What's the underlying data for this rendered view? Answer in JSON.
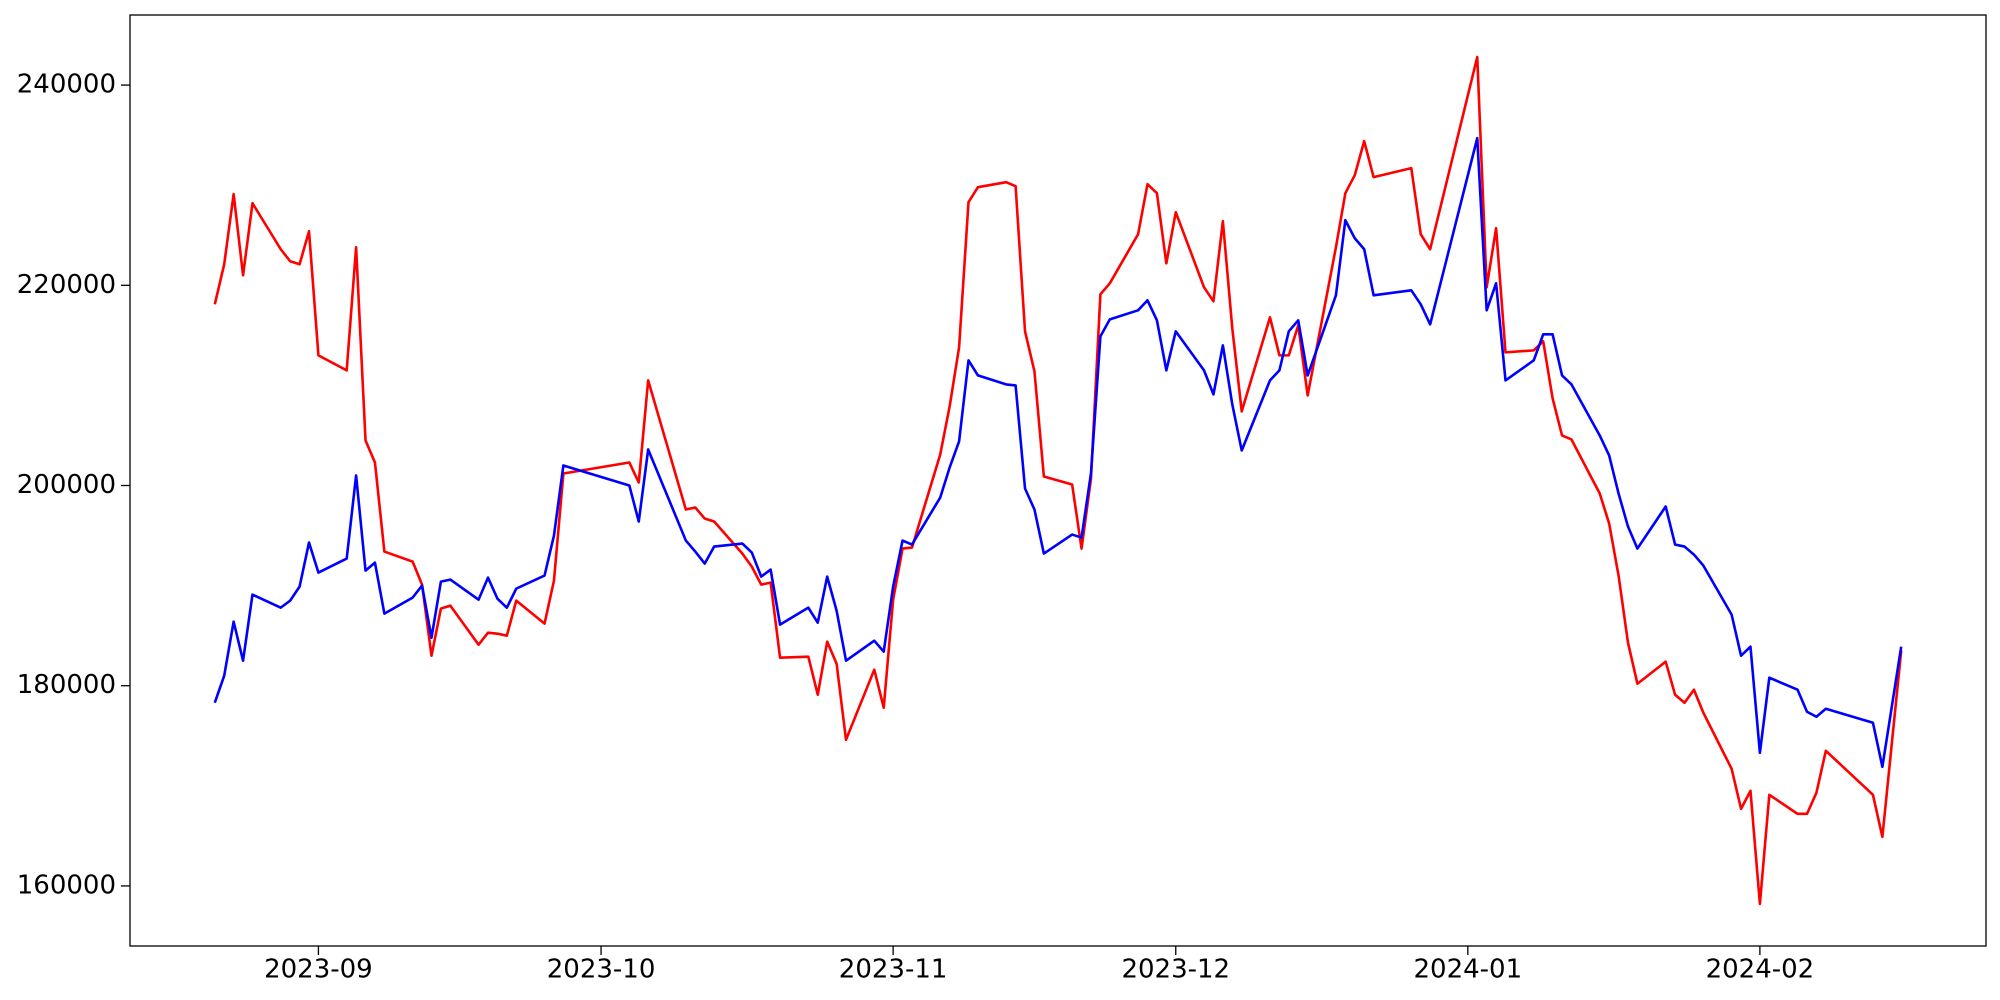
{
  "chart_data": {
    "type": "line",
    "x": [
      "2023-08-21",
      "2023-08-22",
      "2023-08-23",
      "2023-08-24",
      "2023-08-25",
      "2023-08-28",
      "2023-08-29",
      "2023-08-30",
      "2023-08-31",
      "2023-09-01",
      "2023-09-04",
      "2023-09-05",
      "2023-09-06",
      "2023-09-07",
      "2023-09-08",
      "2023-09-11",
      "2023-09-12",
      "2023-09-13",
      "2023-09-14",
      "2023-09-15",
      "2023-09-18",
      "2023-09-19",
      "2023-09-20",
      "2023-09-21",
      "2023-09-22",
      "2023-09-25",
      "2023-09-26",
      "2023-09-27",
      "2023-10-04",
      "2023-10-05",
      "2023-10-06",
      "2023-10-10",
      "2023-10-11",
      "2023-10-12",
      "2023-10-13",
      "2023-10-16",
      "2023-10-17",
      "2023-10-18",
      "2023-10-19",
      "2023-10-20",
      "2023-10-23",
      "2023-10-24",
      "2023-10-25",
      "2023-10-26",
      "2023-10-27",
      "2023-10-30",
      "2023-10-31",
      "2023-11-01",
      "2023-11-02",
      "2023-11-03",
      "2023-11-06",
      "2023-11-07",
      "2023-11-08",
      "2023-11-09",
      "2023-11-10",
      "2023-11-13",
      "2023-11-14",
      "2023-11-15",
      "2023-11-16",
      "2023-11-17",
      "2023-11-20",
      "2023-11-21",
      "2023-11-22",
      "2023-11-23",
      "2023-11-24",
      "2023-11-27",
      "2023-11-28",
      "2023-11-29",
      "2023-11-30",
      "2023-12-01",
      "2023-12-04",
      "2023-12-05",
      "2023-12-06",
      "2023-12-07",
      "2023-12-08",
      "2023-12-11",
      "2023-12-12",
      "2023-12-13",
      "2023-12-14",
      "2023-12-15",
      "2023-12-18",
      "2023-12-19",
      "2023-12-20",
      "2023-12-21",
      "2023-12-22",
      "2023-12-26",
      "2023-12-27",
      "2023-12-28",
      "2024-01-02",
      "2024-01-03",
      "2024-01-04",
      "2024-01-05",
      "2024-01-08",
      "2024-01-09",
      "2024-01-10",
      "2024-01-11",
      "2024-01-12",
      "2024-01-15",
      "2024-01-16",
      "2024-01-17",
      "2024-01-18",
      "2024-01-19",
      "2024-01-22",
      "2024-01-23",
      "2024-01-24",
      "2024-01-25",
      "2024-01-26",
      "2024-01-29",
      "2024-01-30",
      "2024-01-31",
      "2024-02-01",
      "2024-02-02",
      "2024-02-05",
      "2024-02-06",
      "2024-02-07",
      "2024-02-08",
      "2024-02-13",
      "2024-02-14",
      "2024-02-16"
    ],
    "series": [
      {
        "color": "#ff0000",
        "values": [
          218100,
          222100,
          229100,
          221000,
          228200,
          223600,
          222400,
          222100,
          225400,
          213000,
          211500,
          223800,
          204500,
          202300,
          193400,
          192400,
          190100,
          183000,
          187700,
          188000,
          184100,
          185300,
          185200,
          185000,
          188500,
          186200,
          190500,
          201200,
          202300,
          200300,
          210500,
          197600,
          197800,
          196700,
          196400,
          193200,
          191900,
          190100,
          190300,
          182800,
          182900,
          179100,
          184400,
          182200,
          174600,
          181600,
          177800,
          188600,
          193700,
          193800,
          203100,
          207900,
          213800,
          228300,
          229800,
          230300,
          229900,
          215400,
          211400,
          200900,
          200100,
          193700,
          200700,
          219100,
          220200,
          225100,
          230100,
          229200,
          222200,
          227300,
          219800,
          218400,
          226400,
          215700,
          207400,
          216800,
          213000,
          213000,
          216000,
          209000,
          223800,
          229200,
          231000,
          234400,
          230800,
          231700,
          225100,
          223600,
          242800,
          219800,
          225700,
          213300,
          213500,
          214400,
          208700,
          205000,
          204600,
          199200,
          196200,
          191000,
          184300,
          180200,
          182400,
          179100,
          178300,
          179600,
          177300,
          171700,
          167700,
          169500,
          158200,
          169100,
          167200,
          167200,
          169300,
          173500,
          169100,
          164900,
          183500
        ]
      },
      {
        "color": "#0000ff",
        "values": [
          178300,
          181000,
          186400,
          182500,
          189100,
          187800,
          188500,
          189900,
          194300,
          191300,
          192700,
          201000,
          191500,
          192300,
          187200,
          188800,
          190000,
          184800,
          190400,
          190600,
          188600,
          190800,
          188700,
          187800,
          189700,
          191000,
          195000,
          202000,
          200000,
          196400,
          203600,
          194500,
          193400,
          192200,
          193900,
          194200,
          193300,
          190900,
          191600,
          186100,
          187800,
          186300,
          190900,
          187500,
          182500,
          184500,
          183400,
          189900,
          194500,
          194100,
          198800,
          201800,
          204400,
          212500,
          211000,
          210100,
          210000,
          199700,
          197600,
          193200,
          195100,
          194800,
          201200,
          214900,
          216600,
          217500,
          218500,
          216500,
          211500,
          215400,
          211500,
          209100,
          214000,
          208100,
          203500,
          210500,
          211500,
          215400,
          216500,
          211000,
          219000,
          226500,
          224700,
          223600,
          219000,
          219500,
          218100,
          216100,
          234700,
          217500,
          220200,
          210500,
          212500,
          215100,
          215100,
          211000,
          210100,
          205000,
          203000,
          199200,
          195900,
          193700,
          197900,
          194100,
          193900,
          193100,
          192000,
          187100,
          183000,
          183900,
          173300,
          180800,
          179600,
          177400,
          176900,
          177700,
          176300,
          171900,
          183900
        ]
      }
    ],
    "xlim": [
      "2023-08-12",
      "2024-02-25"
    ],
    "xticks": [
      {
        "value": "2023-09-01",
        "label": "2023-09"
      },
      {
        "value": "2023-10-01",
        "label": "2023-10"
      },
      {
        "value": "2023-11-01",
        "label": "2023-11"
      },
      {
        "value": "2023-12-01",
        "label": "2023-12"
      },
      {
        "value": "2024-01-01",
        "label": "2024-01"
      },
      {
        "value": "2024-02-01",
        "label": "2024-02"
      }
    ],
    "ylim": [
      154000,
      247000
    ],
    "yticks": [
      160000,
      180000,
      200000,
      220000,
      240000
    ]
  }
}
